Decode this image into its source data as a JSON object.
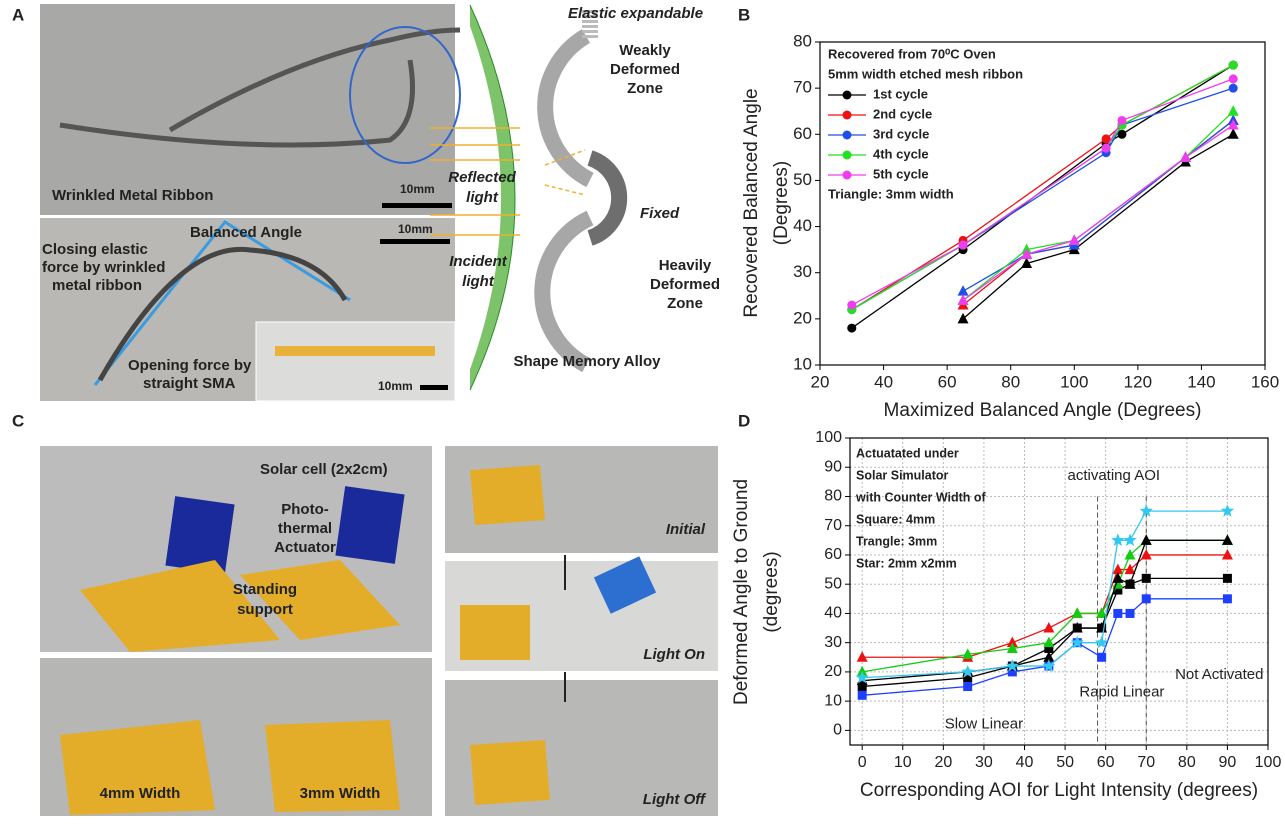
{
  "panels": {
    "a": "A",
    "b": "B",
    "c": "C",
    "d": "D"
  },
  "panel_a": {
    "wrinkled": "Wrinkled Metal Ribbon",
    "scale_1": "10mm",
    "scale_2": "10mm",
    "scale_3": "10mm",
    "balanced_angle": "Balanced Angle",
    "closing_force": [
      "Closing elastic",
      "force by wrinkled",
      "metal ribbon"
    ],
    "opening_force": [
      "Opening force by",
      "straight SMA"
    ],
    "elastic": "Elastic expandable",
    "weak_zone": [
      "Weakly",
      "Deformed",
      "Zone"
    ],
    "reflected": [
      "Reflected",
      "light"
    ],
    "incident": [
      "Incident",
      "light"
    ],
    "fixed": "Fixed",
    "heavy_zone": [
      "Heavily",
      "Deformed",
      "Zone"
    ],
    "sma": "Shape Memory Alloy"
  },
  "panel_c": {
    "solar_cell": "Solar cell (2x2cm)",
    "actuator": [
      "Photo-",
      "thermal",
      "Actuator"
    ],
    "support": [
      "Standing",
      "support"
    ],
    "initial": "Initial",
    "light_on": "Light On",
    "light_off": "Light Off",
    "width_4": "4mm Width",
    "width_3": "3mm Width"
  },
  "chart_data": [
    {
      "type": "line",
      "x_label": "Maximized Balanced Angle (Degrees)",
      "y_label": [
        "Recovered Balanced Angle",
        "(Degrees)"
      ],
      "legend_title": [
        "Recovered from 70⁰C Oven",
        "5mm width etched mesh ribbon"
      ],
      "legend_note": "Triangle: 3mm width",
      "legend": "upper left",
      "grid": false,
      "xlim": [
        20,
        160
      ],
      "xticks": [
        20,
        40,
        60,
        80,
        100,
        120,
        140,
        160
      ],
      "ylim": [
        10,
        80
      ],
      "yticks": [
        10,
        20,
        30,
        40,
        50,
        60,
        70,
        80
      ],
      "x": [
        30,
        65,
        110,
        115,
        150,
        null,
        65,
        85,
        100,
        135,
        150
      ],
      "series": [
        {
          "name": "1st cycle",
          "color": "#000000",
          "markers": [
            "circle",
            "triangle"
          ],
          "values": [
            18,
            35,
            58,
            60,
            75,
            null,
            20,
            32,
            35,
            54,
            60
          ]
        },
        {
          "name": "2nd cycle",
          "color": "#ee1111",
          "markers": [
            "circle",
            "triangle"
          ],
          "values": [
            22,
            37,
            59,
            62,
            75,
            null,
            23,
            34,
            36,
            55,
            63
          ]
        },
        {
          "name": "3rd cycle",
          "color": "#1f4fe6",
          "markers": [
            "circle",
            "triangle"
          ],
          "values": [
            22,
            36,
            56,
            62,
            70,
            null,
            26,
            34,
            36,
            55,
            63
          ]
        },
        {
          "name": "4th cycle",
          "color": "#22e022",
          "markers": [
            "circle",
            "triangle"
          ],
          "values": [
            22,
            36,
            57,
            62,
            75,
            null,
            24,
            35,
            37,
            55,
            65
          ]
        },
        {
          "name": "5th cycle",
          "color": "#f03cf0",
          "markers": [
            "circle",
            "triangle"
          ],
          "values": [
            23,
            36,
            57,
            63,
            72,
            null,
            24,
            34,
            37,
            55,
            62
          ]
        }
      ]
    },
    {
      "type": "line",
      "x_label": "Corresponding AOI for Light Intensity (degrees)",
      "y_label": [
        "Deformed Angle to Ground",
        "(degrees)"
      ],
      "note": [
        "Actuatated under",
        "Solar Simulator",
        "with Counter Width of",
        "Square: 4mm",
        "Trangle: 3mm",
        "Star: 2mm x2mm"
      ],
      "activating": "activating AOI",
      "not_activated": "Not Activated",
      "rapid": "Rapid Linear",
      "slow": "Slow Linear",
      "reference_lines": [
        58,
        70
      ],
      "grid": true,
      "xlim": [
        -3,
        100
      ],
      "xticks": [
        0,
        10,
        20,
        30,
        40,
        50,
        60,
        70,
        80,
        90,
        100
      ],
      "ylim": [
        -5,
        100
      ],
      "yticks": [
        0,
        10,
        20,
        30,
        40,
        50,
        60,
        70,
        80,
        90,
        100
      ],
      "x": [
        0,
        26,
        37,
        46,
        53,
        59,
        63,
        66,
        70,
        90
      ],
      "series": [
        {
          "color": "#000000",
          "marker": "square",
          "values": [
            15,
            18,
            22,
            28,
            35,
            35,
            48,
            50,
            52,
            52
          ]
        },
        {
          "color": "#1f3fff",
          "marker": "square",
          "values": [
            12,
            15,
            20,
            22,
            30,
            25,
            40,
            40,
            45,
            45
          ]
        },
        {
          "color": "#ee1111",
          "marker": "triangle",
          "values": [
            25,
            25,
            30,
            35,
            40,
            40,
            55,
            55,
            60,
            60
          ]
        },
        {
          "color": "#11cc11",
          "marker": "triangle",
          "values": [
            20,
            26,
            28,
            30,
            40,
            40,
            50,
            60,
            65,
            65
          ]
        },
        {
          "color": "#000000",
          "marker": "triangle",
          "values": [
            17,
            20,
            22,
            25,
            35,
            35,
            52,
            50,
            65,
            65
          ]
        },
        {
          "color": "#33c8ef",
          "marker": "star",
          "values": [
            18,
            20,
            22,
            22,
            30,
            30,
            65,
            65,
            75,
            75
          ]
        }
      ]
    }
  ]
}
